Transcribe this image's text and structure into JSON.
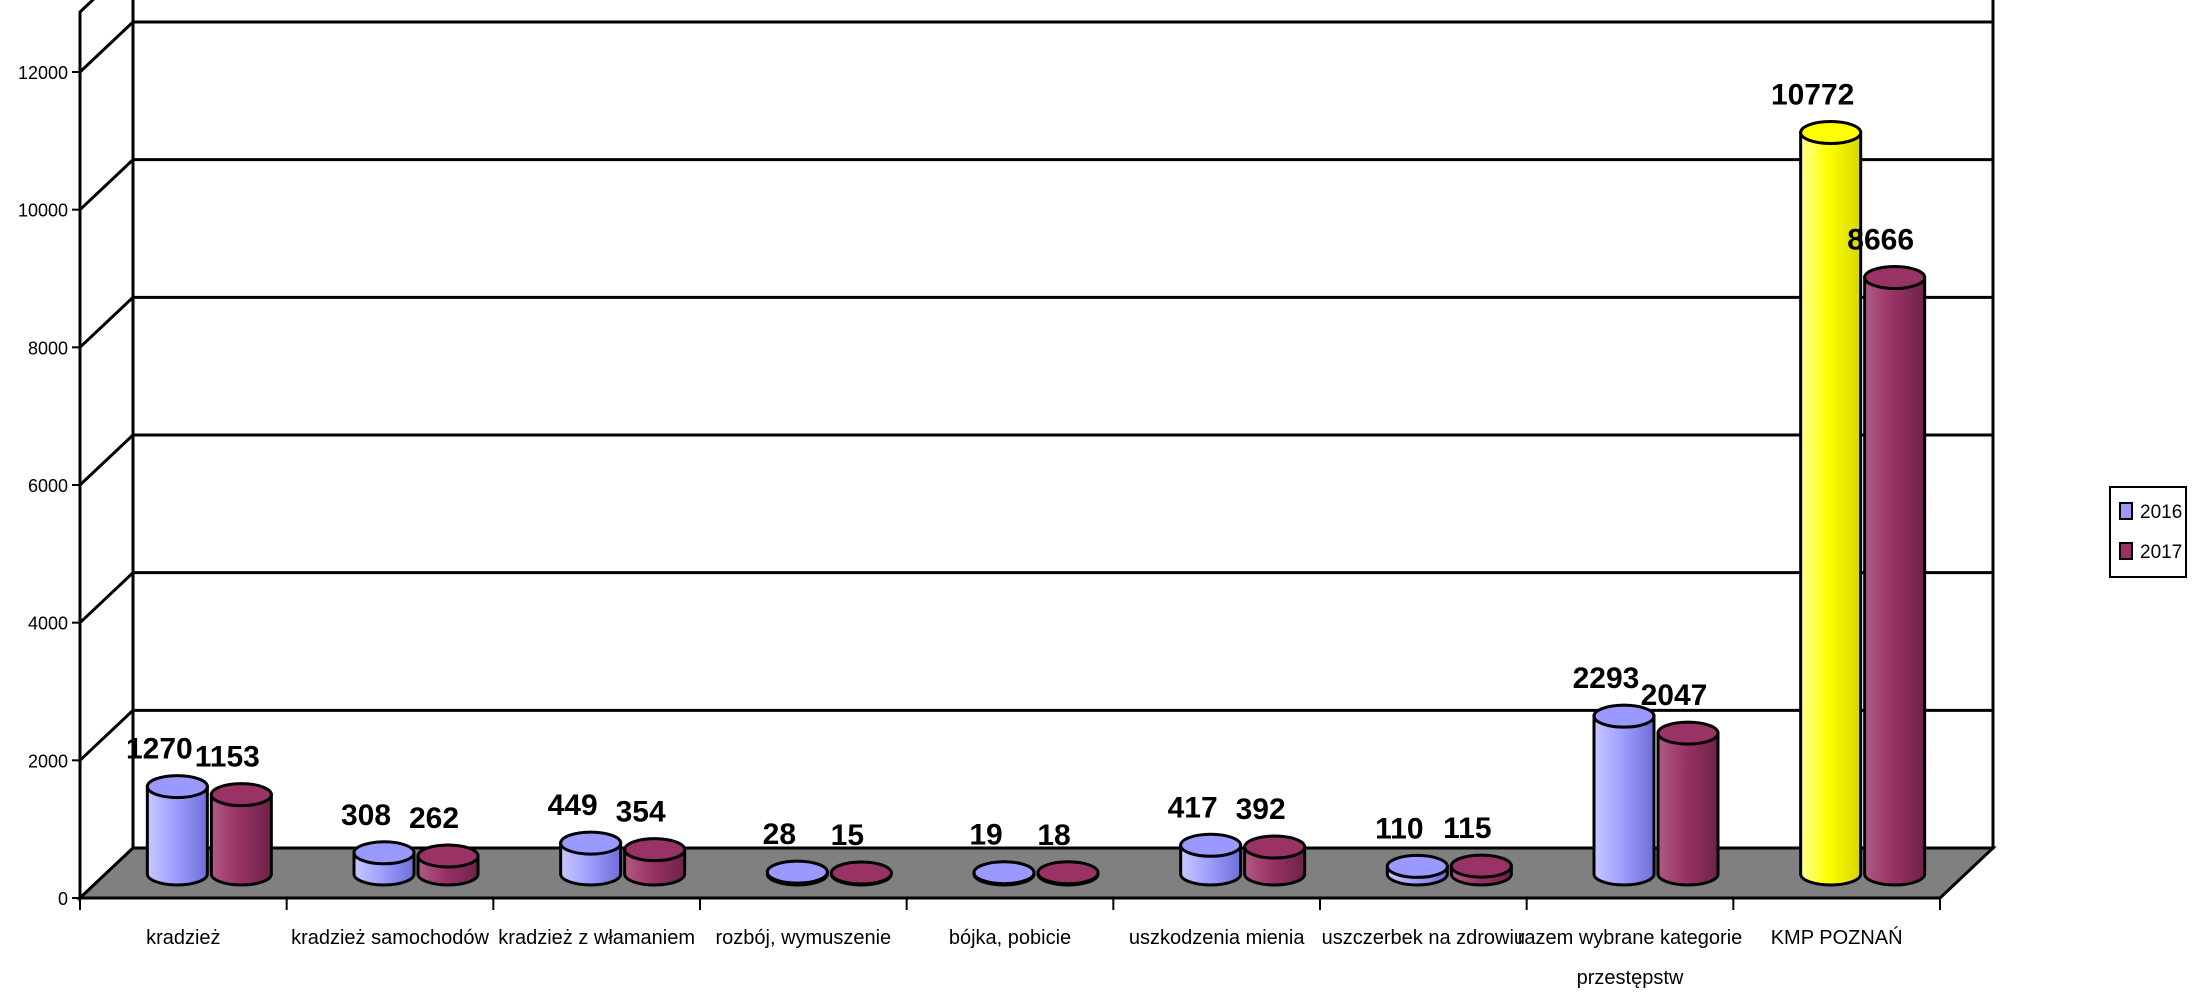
{
  "chart_data": {
    "type": "bar",
    "categories": [
      "kradzież",
      "kradzież samochodów",
      "kradzież z włamaniem",
      "rozbój, wymuszenie",
      "bójka, pobicie",
      "uszkodzenia mienia",
      "uszczerbek na zdrowiu",
      "razem wybrane kategorie przestępstw",
      "KMP POZNAŃ"
    ],
    "category_lines": [
      [
        "kradzież"
      ],
      [
        "kradzież samochodów"
      ],
      [
        "kradzież z włamaniem"
      ],
      [
        "rozbój, wymuszenie"
      ],
      [
        "bójka, pobicie"
      ],
      [
        "uszkodzenia mienia"
      ],
      [
        "uszczerbek na zdrowiu"
      ],
      [
        "razem wybrane kategorie",
        "przestępstw"
      ],
      [
        "KMP POZNAŃ"
      ]
    ],
    "series": [
      {
        "name": "2016",
        "values": [
          1270,
          308,
          449,
          28,
          19,
          417,
          110,
          2293,
          10772
        ],
        "value_labels": [
          "1270",
          "308",
          "449",
          "28",
          "19",
          "417",
          "110",
          "2293",
          "10772"
        ],
        "color": "#9999ff",
        "highlight": {
          "index": 8,
          "color": "#ffff00"
        }
      },
      {
        "name": "2017",
        "values": [
          1153,
          262,
          354,
          15,
          18,
          392,
          115,
          2047,
          8666
        ],
        "value_labels": [
          "1153",
          "262",
          "354",
          "15",
          "18",
          "392",
          "115",
          "2047",
          "8666"
        ],
        "color": "#993366"
      }
    ],
    "y_ticks": [
      "0",
      "2000",
      "4000",
      "6000",
      "8000",
      "10000",
      "12000"
    ],
    "ylim": [
      0,
      12000
    ],
    "title": "",
    "xlabel": "",
    "ylabel": "",
    "grid": true,
    "floor_color": "#808080",
    "legend_position": "right"
  }
}
